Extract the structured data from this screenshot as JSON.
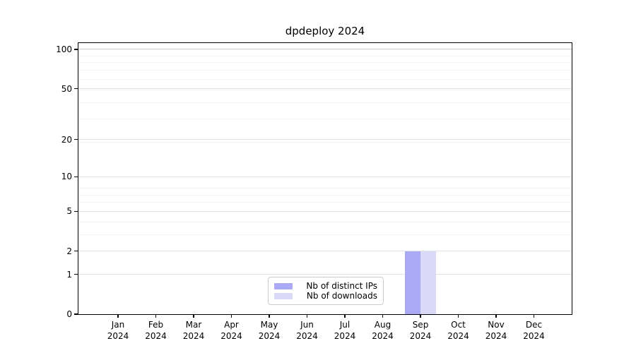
{
  "chart_data": {
    "type": "bar",
    "title": "dpdeploy 2024",
    "categories": [
      {
        "month": "Jan",
        "year": "2024"
      },
      {
        "month": "Feb",
        "year": "2024"
      },
      {
        "month": "Mar",
        "year": "2024"
      },
      {
        "month": "Apr",
        "year": "2024"
      },
      {
        "month": "May",
        "year": "2024"
      },
      {
        "month": "Jun",
        "year": "2024"
      },
      {
        "month": "Jul",
        "year": "2024"
      },
      {
        "month": "Aug",
        "year": "2024"
      },
      {
        "month": "Sep",
        "year": "2024"
      },
      {
        "month": "Oct",
        "year": "2024"
      },
      {
        "month": "Nov",
        "year": "2024"
      },
      {
        "month": "Dec",
        "year": "2024"
      }
    ],
    "series": [
      {
        "name": "Nb of distinct IPs",
        "color": "#a9a9f5",
        "values": [
          0,
          0,
          0,
          0,
          0,
          0,
          0,
          0,
          2,
          0,
          0,
          0
        ]
      },
      {
        "name": "Nb of downloads",
        "color": "#dadaf8",
        "values": [
          0,
          0,
          0,
          0,
          0,
          0,
          0,
          0,
          2,
          0,
          0,
          0
        ]
      }
    ],
    "y_axis": {
      "scale": "log1p",
      "ticks": [
        0,
        1,
        2,
        5,
        10,
        20,
        50,
        100
      ],
      "minor_gridlines": [
        3,
        4,
        6,
        7,
        8,
        19,
        29,
        39,
        49,
        59,
        69,
        79,
        89
      ],
      "ylim": [
        0,
        112
      ]
    },
    "x_axis": {
      "label_lines": 2
    },
    "legend": {
      "position": "lower-center",
      "border_color": "#cccccc"
    },
    "grid": true
  }
}
